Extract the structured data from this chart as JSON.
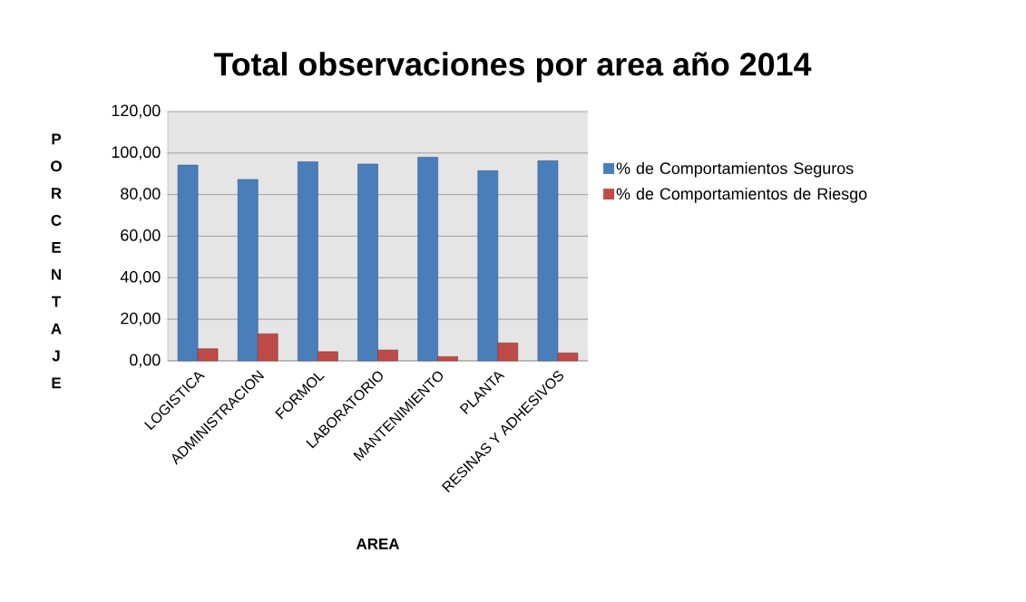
{
  "chart_data": {
    "type": "bar",
    "title": "Total observaciones por area año 2014",
    "xlabel": "AREA",
    "ylabel": "PORCENTAJE",
    "categories": [
      "LOGISTICA",
      "ADMINISTRACION",
      "FORMOL",
      "LABORATORIO",
      "MANTENIMIENTO",
      "PLANTA",
      "RESINAS Y ADHESIVOS"
    ],
    "series": [
      {
        "name": "% de Comportamientos Seguros",
        "color": "#4a7ebb",
        "values": [
          94.2,
          87.3,
          95.8,
          94.7,
          98.0,
          91.5,
          96.3
        ]
      },
      {
        "name": "% de Comportamientos de Riesgo",
        "color": "#be4b48",
        "values": [
          5.8,
          13.0,
          4.4,
          5.2,
          2.0,
          8.6,
          3.8
        ]
      }
    ],
    "ylim": [
      0,
      120
    ],
    "yticks": [
      {
        "value": 0,
        "label": "0,00"
      },
      {
        "value": 20,
        "label": "20,00"
      },
      {
        "value": 40,
        "label": "40,00"
      },
      {
        "value": 60,
        "label": "60,00"
      },
      {
        "value": 80,
        "label": "80,00"
      },
      {
        "value": 100,
        "label": "100,00"
      },
      {
        "value": 120,
        "label": "120,00"
      }
    ],
    "grid": "y",
    "legend": "right"
  }
}
